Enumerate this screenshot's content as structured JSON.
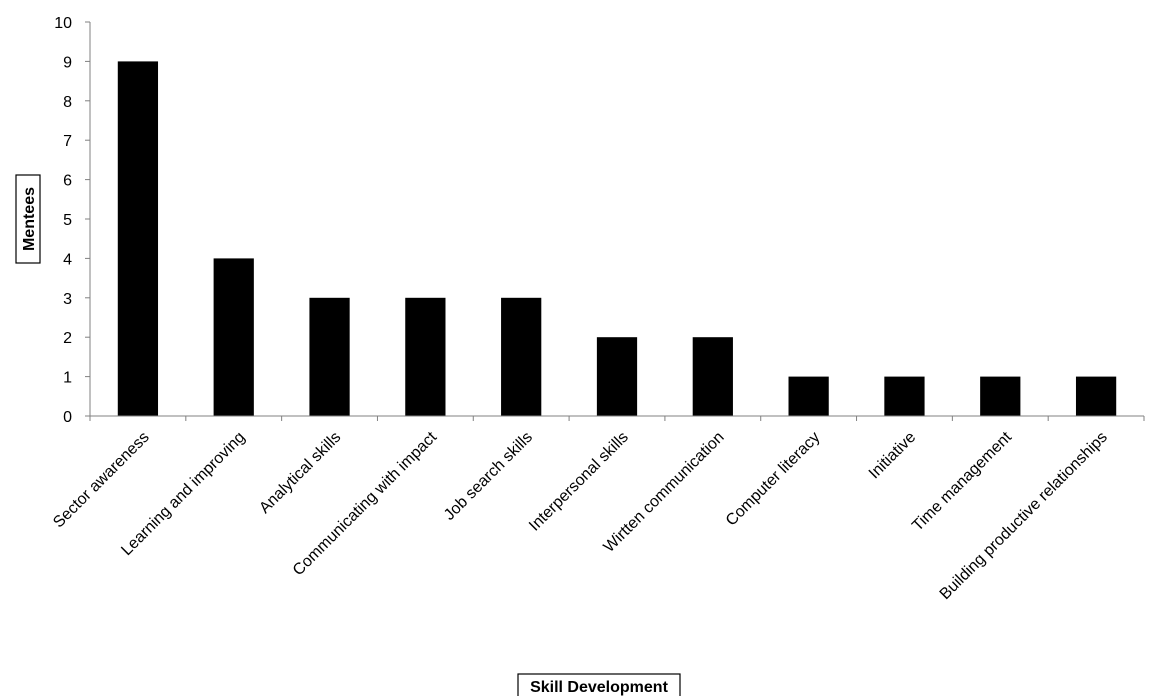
{
  "chart_data": {
    "type": "bar",
    "title": "",
    "xlabel": "Skill Development",
    "ylabel": "Mentees",
    "ylim": [
      0,
      10
    ],
    "yticks": [
      0,
      1,
      2,
      3,
      4,
      5,
      6,
      7,
      8,
      9,
      10
    ],
    "grid": false,
    "legend": "none",
    "bar_color": "#000000",
    "categories": [
      "Sector awareness",
      "Learning and improving",
      "Analytical skills",
      "Communicating with impact",
      "Job search skills",
      "Interpersonal skills",
      "Wirtten communication",
      "Computer literacy",
      "Initiative",
      "Time management",
      "Building productive relationships"
    ],
    "values": [
      9,
      4,
      3,
      3,
      3,
      2,
      2,
      1,
      1,
      1,
      1
    ]
  }
}
